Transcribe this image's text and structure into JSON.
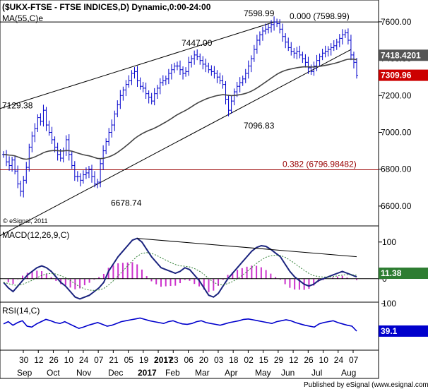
{
  "header": {
    "title": "($UKX-FTSE - FTSE INDICES,D) Dynamic,0:00-24:00",
    "ma_label": "MA(55,C)e",
    "copyright": "© eSignal, 2011"
  },
  "footer": {
    "published": "Published by eSignal (www.esignal.com)"
  },
  "colors": {
    "price": "#0000cc",
    "ma": "#444444",
    "macd_line": "#1a237e",
    "signal_line": "#2e7d32",
    "histogram": "#cc33cc",
    "rsi": "#0000cc",
    "fib": "#990000",
    "trend": "#000000",
    "last_price_badge": "#cc0000",
    "ma_badge": "#555555",
    "macd_badge": "#2e7d32",
    "rsi_badge": "#0000cc"
  },
  "chart_data": [
    {
      "type": "candlestick",
      "panel": "price",
      "title": "($UKX-FTSE - FTSE INDICES,D) Dynamic,0:00-24:00",
      "x_tick_labels": [
        "30",
        "12",
        "26",
        "10",
        "24",
        "07",
        "21",
        "05",
        "19",
        "2017",
        "23",
        "06",
        "20",
        "03",
        "18",
        "02",
        "15",
        "29",
        "12",
        "26",
        "10",
        "24",
        "07"
      ],
      "month_labels": [
        "Sep",
        "Oct",
        "Nov",
        "Dec",
        "2017",
        "Feb",
        "Mar",
        "Apr",
        "May",
        "Jun",
        "Jul",
        "Aug"
      ],
      "y_ticks": [
        6600,
        6800,
        7000,
        7200,
        7400,
        7600
      ],
      "y_tick_labels": [
        "6600.00",
        "6800.00",
        "7000.00",
        "7200.00",
        "7400.00",
        "7600.00"
      ],
      "ylim": [
        6500,
        7680
      ],
      "closes": [
        6880,
        6840,
        6820,
        6850,
        6790,
        6720,
        6680,
        6740,
        6810,
        6920,
        6980,
        7020,
        7080,
        7060,
        7120,
        7040,
        7000,
        6960,
        6920,
        6880,
        6860,
        6900,
        6960,
        6880,
        6820,
        6760,
        6760,
        6740,
        6770,
        6780,
        6800,
        6760,
        6720,
        6730,
        6830,
        6900,
        6950,
        7000,
        7040,
        7100,
        7150,
        7200,
        7230,
        7260,
        7280,
        7320,
        7330,
        7280,
        7250,
        7240,
        7210,
        7190,
        7170,
        7210,
        7240,
        7270,
        7280,
        7290,
        7320,
        7340,
        7360,
        7360,
        7340,
        7320,
        7330,
        7380,
        7400,
        7420,
        7410,
        7390,
        7370,
        7360,
        7340,
        7330,
        7320,
        7300,
        7280,
        7260,
        7180,
        7120,
        7170,
        7220,
        7250,
        7270,
        7290,
        7320,
        7360,
        7400,
        7450,
        7500,
        7530,
        7550,
        7560,
        7570,
        7585,
        7598.99,
        7590,
        7560,
        7520,
        7490,
        7460,
        7440,
        7430,
        7440,
        7420,
        7400,
        7380,
        7350,
        7330,
        7360,
        7390,
        7410,
        7430,
        7440,
        7450,
        7460,
        7470,
        7490,
        7510,
        7530,
        7540,
        7500,
        7420,
        7380,
        7309.96
      ],
      "last_close": 7309.96,
      "last_close_label": "7309.96",
      "series": [
        {
          "name": "MA(55,C)e",
          "last_value": 7418.4201,
          "last_value_label": "7418.4201"
        }
      ],
      "annotations": [
        {
          "text": "7129.38",
          "price": 7129.38
        },
        {
          "text": "7447.00",
          "price": 7447.0
        },
        {
          "text": "7598.99",
          "price": 7598.99
        },
        {
          "text": "0.000 (7598.99)",
          "price": 7598.99
        },
        {
          "text": "7096.83",
          "price": 7096.83
        },
        {
          "text": "0.382 (6796.98482)",
          "price": 6796.98482
        },
        {
          "text": "6678.74",
          "price": 6678.74
        }
      ],
      "fib_levels": [
        {
          "ratio": 0.0,
          "price": 7598.99
        },
        {
          "ratio": 0.382,
          "price": 6796.98482
        }
      ]
    },
    {
      "type": "line",
      "panel": "macd",
      "title": "MACD(12,26,9,C)",
      "y_ticks": [
        0,
        100
      ],
      "y_tick_labels": [
        "0",
        "100"
      ],
      "ylim": [
        -60,
        140
      ],
      "macd_values": [
        -10,
        -25,
        -35,
        -20,
        -5,
        10,
        20,
        30,
        35,
        30,
        20,
        5,
        -10,
        -20,
        -35,
        -50,
        -55,
        -50,
        -45,
        -35,
        -25,
        -10,
        20,
        40,
        60,
        75,
        90,
        105,
        110,
        100,
        80,
        60,
        45,
        30,
        25,
        20,
        15,
        20,
        30,
        25,
        10,
        -5,
        -25,
        -45,
        -50,
        -40,
        -20,
        0,
        15,
        30,
        45,
        60,
        75,
        85,
        90,
        88,
        80,
        70,
        60,
        40,
        20,
        5,
        -5,
        -15,
        -20,
        -15,
        -5,
        0,
        5,
        10,
        15,
        20,
        15,
        10,
        5
      ],
      "macd_last_label": "11.38",
      "histogram_present": true
    },
    {
      "type": "line",
      "panel": "rsi",
      "title": "RSI(14,C)",
      "y_ticks": [
        39.1,
        100
      ],
      "y_tick_labels": [
        "39.1",
        "100"
      ],
      "ylim": [
        0,
        100
      ],
      "values": [
        55,
        60,
        52,
        58,
        62,
        50,
        48,
        55,
        60,
        65,
        62,
        58,
        56,
        60,
        55,
        50,
        45,
        48,
        52,
        55,
        58,
        54,
        50,
        52,
        56,
        60,
        62,
        64,
        66,
        68,
        65,
        62,
        60,
        58,
        56,
        60,
        62,
        58,
        55,
        54,
        56,
        60,
        62,
        58,
        56,
        54,
        52,
        55,
        58,
        60,
        62,
        65,
        66,
        64,
        62,
        60,
        58,
        56,
        60,
        62,
        64,
        62,
        58,
        55,
        52,
        50,
        48,
        55,
        58,
        60,
        62,
        58,
        55,
        52,
        50,
        39.1
      ],
      "last_value": 39.1,
      "last_value_label": "39.1"
    }
  ]
}
